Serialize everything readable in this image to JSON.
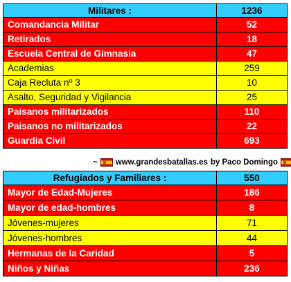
{
  "militares": {
    "header": {
      "label": "Militares  :",
      "total": "1236"
    },
    "rows": [
      {
        "label": "Comandancia Militar",
        "value": "52",
        "color": "red"
      },
      {
        "label": "Retirados",
        "value": "18",
        "color": "red"
      },
      {
        "label": "Escuela Central de Gimnasia",
        "value": "47",
        "color": "red"
      },
      {
        "label": "Academias",
        "value": "259",
        "color": "yellow"
      },
      {
        "label": "Caja Recluta nº 3",
        "value": "10",
        "color": "yellow"
      },
      {
        "label": "Asalto, Seguridad y Vigilancia",
        "value": "25",
        "color": "yellow"
      },
      {
        "label": "Paisanos militarizados",
        "value": "110",
        "color": "red"
      },
      {
        "label": "Paisanos no militarizados",
        "value": "22",
        "color": "red"
      },
      {
        "label": "Guardia Civil",
        "value": "693",
        "color": "red"
      }
    ]
  },
  "credit": {
    "left_mark": "~",
    "site": "www.grandesbatallas.es",
    "author": "by Paco Domingo",
    "right_mark": "~"
  },
  "refugiados": {
    "header": {
      "label": "Refugiados y Familiares  :",
      "total": "550"
    },
    "rows": [
      {
        "label": "Mayor de Edad-Mujeres",
        "value": "186",
        "color": "red"
      },
      {
        "label": "Mayor de edad-hombres",
        "value": "8",
        "color": "red"
      },
      {
        "label": "Jóvenes-mujeres",
        "value": "71",
        "color": "yellow"
      },
      {
        "label": "Jóvenes-hombres",
        "value": "44",
        "color": "yellow"
      },
      {
        "label": "Hermanas de la Caridad",
        "value": "5",
        "color": "red"
      },
      {
        "label": "Niños  y Niñas",
        "value": "236",
        "color": "red"
      }
    ]
  },
  "colors": {
    "header": "#33ccff",
    "red": "#ff0000",
    "yellow": "#ffff00"
  }
}
